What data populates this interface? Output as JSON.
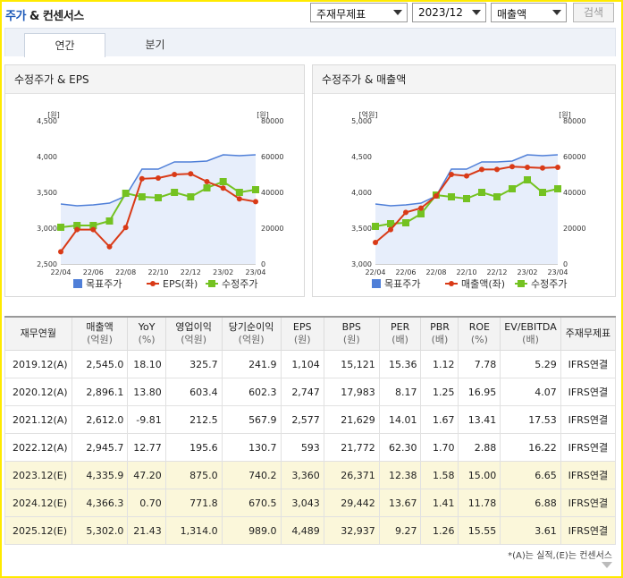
{
  "header": {
    "title_main": "주가",
    "title_amp": " & ",
    "title_rest": "컨센서스",
    "select_statement": "주재무제표",
    "select_period": "2023/12",
    "select_item": "매출액",
    "search_label": "검색"
  },
  "tabs": [
    {
      "label": "연간",
      "active": true
    },
    {
      "label": "분기",
      "active": false
    }
  ],
  "chart_data": [
    {
      "type": "line",
      "title": "수정주가 & EPS",
      "left_axis_unit": "[원]",
      "right_axis_unit": "[원]",
      "left_ticks": [
        "4,500",
        "4,000",
        "3,500",
        "3,000",
        "2,500"
      ],
      "right_ticks": [
        "80000",
        "60000",
        "40000",
        "20000",
        "0"
      ],
      "ylim_left": [
        2500,
        4500
      ],
      "ylim_right": [
        0,
        80000
      ],
      "x_tick_labels": [
        "22/04",
        "22/06",
        "22/08",
        "22/10",
        "22/12",
        "23/02",
        "23/04"
      ],
      "x": [
        "22/04",
        "22/05",
        "22/06",
        "22/07",
        "22/08",
        "22/09",
        "22/10",
        "22/11",
        "22/12",
        "23/01",
        "23/02",
        "23/03",
        "23/04"
      ],
      "series": [
        {
          "name": "목표주가",
          "color": "#4f7fd8",
          "axis": "right",
          "values": [
            33500,
            32500,
            33000,
            34000,
            38000,
            53000,
            53000,
            57000,
            57000,
            57500,
            61000,
            60500,
            61000
          ]
        },
        {
          "name": "EPS(좌)",
          "color": "#d93a17",
          "axis": "left",
          "values": [
            2670,
            2980,
            2980,
            2740,
            3010,
            3690,
            3700,
            3750,
            3760,
            3650,
            3560,
            3410,
            3370
          ]
        },
        {
          "name": "수정주가",
          "color": "#74c221",
          "axis": "right",
          "values": [
            20500,
            21500,
            21500,
            24000,
            39500,
            37500,
            37000,
            40000,
            37500,
            42500,
            46000,
            40000,
            41500
          ]
        }
      ]
    },
    {
      "type": "line",
      "title": "수정주가 & 매출액",
      "left_axis_unit": "[억원]",
      "right_axis_unit": "[원]",
      "left_ticks": [
        "5,000",
        "4,500",
        "4,000",
        "3,500",
        "3,000"
      ],
      "right_ticks": [
        "80000",
        "60000",
        "40000",
        "20000",
        "0"
      ],
      "ylim_left": [
        3000,
        5000
      ],
      "ylim_right": [
        0,
        80000
      ],
      "x_tick_labels": [
        "22/04",
        "22/06",
        "22/08",
        "22/10",
        "22/12",
        "23/02",
        "23/04"
      ],
      "x": [
        "22/04",
        "22/05",
        "22/06",
        "22/07",
        "22/08",
        "22/09",
        "22/10",
        "22/11",
        "22/12",
        "23/01",
        "23/02",
        "23/03",
        "23/04"
      ],
      "series": [
        {
          "name": "목표주가",
          "color": "#4f7fd8",
          "axis": "right",
          "values": [
            33500,
            32500,
            33000,
            34000,
            38000,
            53000,
            53000,
            57000,
            57000,
            57500,
            61000,
            60500,
            61000
          ]
        },
        {
          "name": "매출액(좌)",
          "color": "#d93a17",
          "axis": "left",
          "values": [
            3300,
            3480,
            3720,
            3780,
            3950,
            4250,
            4230,
            4320,
            4320,
            4360,
            4350,
            4340,
            4350
          ]
        },
        {
          "name": "수정주가",
          "color": "#74c221",
          "axis": "right",
          "values": [
            21000,
            22500,
            23000,
            28000,
            38500,
            37500,
            36500,
            40000,
            37500,
            42000,
            47000,
            40000,
            42000
          ]
        }
      ]
    }
  ],
  "table": {
    "headers": [
      {
        "label": "재무연월",
        "sub": ""
      },
      {
        "label": "매출액",
        "sub": "(억원)"
      },
      {
        "label": "YoY",
        "sub": "(%)"
      },
      {
        "label": "영업이익",
        "sub": "(억원)"
      },
      {
        "label": "당기순이익",
        "sub": "(억원)"
      },
      {
        "label": "EPS",
        "sub": "(원)"
      },
      {
        "label": "BPS",
        "sub": "(원)"
      },
      {
        "label": "PER",
        "sub": "(배)"
      },
      {
        "label": "PBR",
        "sub": "(배)"
      },
      {
        "label": "ROE",
        "sub": "(%)"
      },
      {
        "label": "EV/EBITDA",
        "sub": "(배)"
      },
      {
        "label": "주재무제표",
        "sub": ""
      }
    ],
    "rows": [
      {
        "estimate": false,
        "cells": [
          "2019.12(A)",
          "2,545.0",
          "18.10",
          "325.7",
          "241.9",
          "1,104",
          "15,121",
          "15.36",
          "1.12",
          "7.78",
          "5.29",
          "IFRS연결"
        ]
      },
      {
        "estimate": false,
        "cells": [
          "2020.12(A)",
          "2,896.1",
          "13.80",
          "603.4",
          "602.3",
          "2,747",
          "17,983",
          "8.17",
          "1.25",
          "16.95",
          "4.07",
          "IFRS연결"
        ]
      },
      {
        "estimate": false,
        "cells": [
          "2021.12(A)",
          "2,612.0",
          "-9.81",
          "212.5",
          "567.9",
          "2,577",
          "21,629",
          "14.01",
          "1.67",
          "13.41",
          "17.53",
          "IFRS연결"
        ]
      },
      {
        "estimate": false,
        "cells": [
          "2022.12(A)",
          "2,945.7",
          "12.77",
          "195.6",
          "130.7",
          "593",
          "21,772",
          "62.30",
          "1.70",
          "2.88",
          "16.22",
          "IFRS연결"
        ]
      },
      {
        "estimate": true,
        "cells": [
          "2023.12(E)",
          "4,335.9",
          "47.20",
          "875.0",
          "740.2",
          "3,360",
          "26,371",
          "12.38",
          "1.58",
          "15.00",
          "6.65",
          "IFRS연결"
        ]
      },
      {
        "estimate": true,
        "cells": [
          "2024.12(E)",
          "4,366.3",
          "0.70",
          "771.8",
          "670.5",
          "3,043",
          "29,442",
          "13.67",
          "1.41",
          "11.78",
          "6.88",
          "IFRS연결"
        ]
      },
      {
        "estimate": true,
        "cells": [
          "2025.12(E)",
          "5,302.0",
          "21.43",
          "1,314.0",
          "989.0",
          "4,489",
          "32,937",
          "9.27",
          "1.26",
          "15.55",
          "3.61",
          "IFRS연결"
        ]
      }
    ]
  },
  "footnote": "*(A)는 실적,(E)는 컨센서스"
}
